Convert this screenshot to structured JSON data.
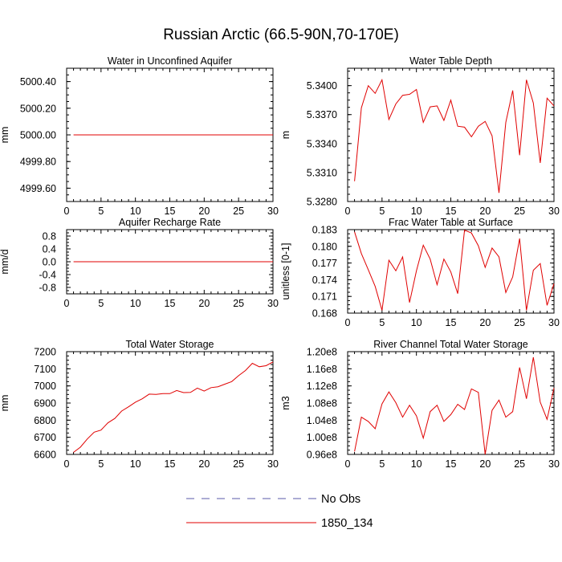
{
  "figure_title": "Russian Arctic (66.5-90N,70-170E)",
  "colors": {
    "obs": "#5a5aa8",
    "model": "#e00000",
    "axis": "#000000"
  },
  "legend": [
    {
      "label": "No Obs",
      "style": "dashed",
      "color": "#5a5aa8"
    },
    {
      "label": "1850_134",
      "style": "solid",
      "color": "#e00000"
    }
  ],
  "chart_data": [
    {
      "id": "water-unconfined-aquifer",
      "type": "line",
      "title": "Water in Unconfined Aquifer",
      "ylabel": "mm",
      "xlim": [
        0,
        30
      ],
      "ylim": [
        4999.5,
        5000.5
      ],
      "xticks": [
        0,
        5,
        10,
        15,
        20,
        25,
        30
      ],
      "xticklabels": [
        "0",
        "5",
        "10",
        "15",
        "20",
        "25",
        "30"
      ],
      "yticks": [
        4999.6,
        4999.8,
        5000.0,
        5000.2,
        5000.4
      ],
      "yticklabels": [
        "4999.60",
        "4999.80",
        "5000.00",
        "5000.20",
        "5000.40"
      ],
      "series": [
        {
          "name": "1850_134",
          "x": [
            1,
            2,
            3,
            4,
            5,
            6,
            7,
            8,
            9,
            10,
            11,
            12,
            13,
            14,
            15,
            16,
            17,
            18,
            19,
            20,
            21,
            22,
            23,
            24,
            25,
            26,
            27,
            28,
            29,
            30
          ],
          "y": [
            5000,
            5000,
            5000,
            5000,
            5000,
            5000,
            5000,
            5000,
            5000,
            5000,
            5000,
            5000,
            5000,
            5000,
            5000,
            5000,
            5000,
            5000,
            5000,
            5000,
            5000,
            5000,
            5000,
            5000,
            5000,
            5000,
            5000,
            5000,
            5000,
            5000
          ]
        }
      ]
    },
    {
      "id": "water-table-depth",
      "type": "line",
      "title": "Water Table Depth",
      "ylabel": "m",
      "xlim": [
        0,
        30
      ],
      "ylim": [
        5.328,
        5.3418
      ],
      "xticks": [
        0,
        5,
        10,
        15,
        20,
        25,
        30
      ],
      "xticklabels": [
        "0",
        "5",
        "10",
        "15",
        "20",
        "25",
        "30"
      ],
      "yticks": [
        5.328,
        5.331,
        5.334,
        5.337,
        5.34
      ],
      "yticklabels": [
        "5.3280",
        "5.3310",
        "5.3340",
        "5.3370",
        "5.3400"
      ],
      "series": [
        {
          "name": "1850_134",
          "x": [
            1,
            2,
            3,
            4,
            5,
            6,
            7,
            8,
            9,
            10,
            11,
            12,
            13,
            14,
            15,
            16,
            17,
            18,
            19,
            20,
            21,
            22,
            23,
            24,
            25,
            26,
            27,
            28,
            29,
            30
          ],
          "y": [
            5.3301,
            5.3377,
            5.34,
            5.3392,
            5.3406,
            5.3365,
            5.3381,
            5.339,
            5.3391,
            5.3396,
            5.3362,
            5.3378,
            5.3379,
            5.3364,
            5.3385,
            5.3358,
            5.3357,
            5.3347,
            5.3358,
            5.3363,
            5.3348,
            5.3289,
            5.3362,
            5.3395,
            5.3328,
            5.3406,
            5.3382,
            5.332,
            5.3387,
            5.3379
          ]
        }
      ]
    },
    {
      "id": "aquifer-recharge-rate",
      "type": "line",
      "title": "Aquifer Recharge Rate",
      "ylabel": "mm/d",
      "xlim": [
        0,
        30
      ],
      "ylim": [
        -1.0,
        1.0
      ],
      "xticks": [
        0,
        5,
        10,
        15,
        20,
        25,
        30
      ],
      "xticklabels": [
        "0",
        "5",
        "10",
        "15",
        "20",
        "25",
        "30"
      ],
      "yticks": [
        -0.8,
        -0.4,
        0.0,
        0.4,
        0.8
      ],
      "yticklabels": [
        "-0.8",
        "-0.4",
        "0.0",
        "0.4",
        "0.8"
      ],
      "series": [
        {
          "name": "1850_134",
          "x": [
            1,
            2,
            3,
            4,
            5,
            6,
            7,
            8,
            9,
            10,
            11,
            12,
            13,
            14,
            15,
            16,
            17,
            18,
            19,
            20,
            21,
            22,
            23,
            24,
            25,
            26,
            27,
            28,
            29,
            30
          ],
          "y": [
            0,
            0,
            0,
            0,
            0,
            0,
            0,
            0,
            0,
            0,
            0,
            0,
            0,
            0,
            0,
            0,
            0,
            0,
            0,
            0,
            0,
            0,
            0,
            0,
            0,
            0,
            0,
            0,
            0,
            0
          ]
        }
      ]
    },
    {
      "id": "frac-water-table-surface",
      "type": "line",
      "title": "Frac Water Table at Surface",
      "ylabel": "unitless [0-1]",
      "xlim": [
        0,
        30
      ],
      "ylim": [
        0.168,
        0.183
      ],
      "xticks": [
        0,
        5,
        10,
        15,
        20,
        25,
        30
      ],
      "xticklabels": [
        "0",
        "5",
        "10",
        "15",
        "20",
        "25",
        "30"
      ],
      "yticks": [
        0.168,
        0.171,
        0.174,
        0.177,
        0.18,
        0.183
      ],
      "yticklabels": [
        "0.168",
        "0.171",
        "0.174",
        "0.177",
        "0.180",
        "0.183"
      ],
      "series": [
        {
          "name": "1850_134",
          "x": [
            1,
            2,
            3,
            4,
            5,
            6,
            7,
            8,
            9,
            10,
            11,
            12,
            13,
            14,
            15,
            16,
            17,
            18,
            19,
            20,
            21,
            22,
            23,
            24,
            25,
            26,
            27,
            28,
            29,
            30
          ],
          "y": [
            0.1826,
            0.1787,
            0.1758,
            0.1728,
            0.1685,
            0.1775,
            0.1756,
            0.1781,
            0.1699,
            0.1756,
            0.1802,
            0.1777,
            0.1731,
            0.1777,
            0.1754,
            0.1715,
            0.1829,
            0.1824,
            0.1801,
            0.1762,
            0.1797,
            0.1781,
            0.1717,
            0.1745,
            0.1814,
            0.1685,
            0.1757,
            0.1769,
            0.1694,
            0.1733
          ]
        }
      ]
    },
    {
      "id": "total-water-storage",
      "type": "line",
      "title": "Total Water Storage",
      "ylabel": "mm",
      "xlim": [
        0,
        30
      ],
      "ylim": [
        6600,
        7200
      ],
      "xticks": [
        0,
        5,
        10,
        15,
        20,
        25,
        30
      ],
      "xticklabels": [
        "0",
        "5",
        "10",
        "15",
        "20",
        "25",
        "30"
      ],
      "yticks": [
        6600,
        6700,
        6800,
        6900,
        7000,
        7100,
        7200
      ],
      "yticklabels": [
        "6600",
        "6700",
        "6800",
        "6900",
        "7000",
        "7100",
        "7200"
      ],
      "series": [
        {
          "name": "1850_134",
          "x": [
            1,
            2,
            3,
            4,
            5,
            6,
            7,
            8,
            9,
            10,
            11,
            12,
            13,
            14,
            15,
            16,
            17,
            18,
            19,
            20,
            21,
            22,
            23,
            24,
            25,
            26,
            27,
            28,
            29,
            30
          ],
          "y": [
            6612,
            6642,
            6690,
            6730,
            6742,
            6784,
            6810,
            6853,
            6878,
            6905,
            6925,
            6952,
            6950,
            6955,
            6955,
            6973,
            6961,
            6962,
            6987,
            6970,
            6990,
            6995,
            7010,
            7025,
            7060,
            7090,
            7132,
            7112,
            7118,
            7140
          ]
        }
      ]
    },
    {
      "id": "river-channel-storage",
      "type": "line",
      "title": "River Channel Total Water Storage",
      "ylabel": "m3",
      "xlim": [
        0,
        30
      ],
      "ylim": [
        96000000.0,
        120000000.0
      ],
      "xticks": [
        0,
        5,
        10,
        15,
        20,
        25,
        30
      ],
      "xticklabels": [
        "0",
        "5",
        "10",
        "15",
        "20",
        "25",
        "30"
      ],
      "yticks": [
        96000000.0,
        100000000.0,
        104000000.0,
        108000000.0,
        112000000.0,
        116000000.0,
        120000000.0
      ],
      "yticklabels": [
        "0.96e8",
        "1.00e8",
        "1.04e8",
        "1.08e8",
        "1.12e8",
        "1.16e8",
        "1.20e8"
      ],
      "series": [
        {
          "name": "1850_134",
          "x": [
            1,
            2,
            3,
            4,
            5,
            6,
            7,
            8,
            9,
            10,
            11,
            12,
            13,
            14,
            15,
            16,
            17,
            18,
            19,
            20,
            21,
            22,
            23,
            24,
            25,
            26,
            27,
            28,
            29,
            30
          ],
          "y": [
            96700000.0,
            104700000.0,
            103700000.0,
            102000000.0,
            107800000.0,
            110600000.0,
            108100000.0,
            104700000.0,
            107500000.0,
            105000000.0,
            99800000.0,
            106000000.0,
            107500000.0,
            103700000.0,
            105300000.0,
            107700000.0,
            106500000.0,
            111300000.0,
            110500000.0,
            96000000.0,
            106300000.0,
            108700000.0,
            104700000.0,
            106000000.0,
            116300000.0,
            109000000.0,
            118700000.0,
            108200000.0,
            104200000.0,
            111500000.0
          ]
        }
      ]
    }
  ]
}
